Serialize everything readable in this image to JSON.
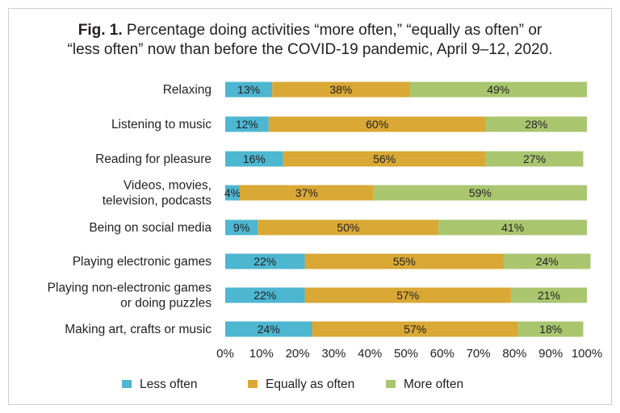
{
  "figure": {
    "fig_label": "Fig. 1.",
    "title_line1": " Percentage doing activities “more often,” “equally as often” or",
    "title_line2": "“less often” now than before the COVID-19 pandemic, April 9–12, 2020."
  },
  "chart_data": {
    "type": "bar",
    "orientation": "horizontal",
    "stacked": true,
    "categories": [
      [
        "Relaxing"
      ],
      [
        "Listening to music"
      ],
      [
        "Reading for pleasure"
      ],
      [
        "Videos, movies,",
        "television, podcasts"
      ],
      [
        "Being on social media"
      ],
      [
        "Playing electronic games"
      ],
      [
        "Playing non-electronic games",
        "or doing puzzles"
      ],
      [
        "Making art, crafts or music"
      ]
    ],
    "series": [
      {
        "name": "Less often",
        "color": "#4db6d0",
        "values": [
          13,
          12,
          16,
          4,
          9,
          22,
          22,
          24
        ]
      },
      {
        "name": "Equally as often",
        "color": "#d9a835",
        "values": [
          38,
          60,
          56,
          37,
          50,
          55,
          57,
          57
        ]
      },
      {
        "name": "More often",
        "color": "#a9c66f",
        "values": [
          49,
          28,
          27,
          59,
          41,
          24,
          21,
          18
        ]
      }
    ],
    "xlim": [
      0,
      100
    ],
    "xticks": [
      "0%",
      "10%",
      "20%",
      "30%",
      "40%",
      "50%",
      "60%",
      "70%",
      "80%",
      "90%",
      "100%"
    ],
    "value_suffix": "%",
    "grid": false,
    "legend_position": "bottom"
  }
}
